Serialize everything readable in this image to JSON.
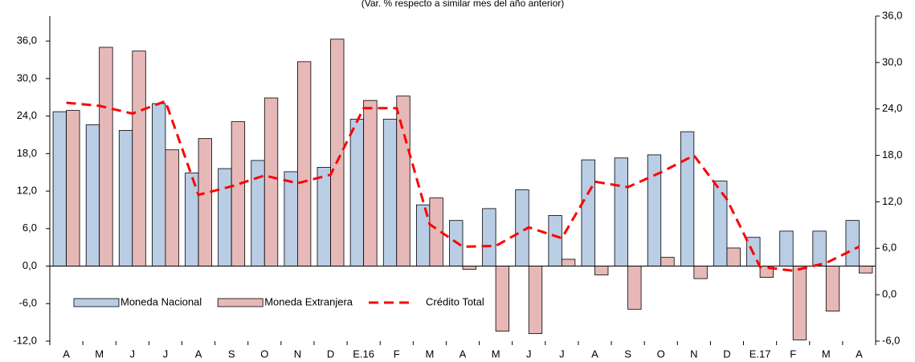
{
  "chart_data": {
    "type": "bar",
    "title": "(Var. % respecto a similar mes del año anterior)",
    "categories": [
      "A",
      "M",
      "J",
      "J",
      "A",
      "S",
      "O",
      "N",
      "D",
      "E.16",
      "F",
      "M",
      "A",
      "M",
      "J",
      "J",
      "A",
      "S",
      "O",
      "N",
      "D",
      "E.17",
      "F",
      "M",
      "A"
    ],
    "series": [
      {
        "name": "Moneda Nacional",
        "type": "bar",
        "color": "#b9cde5",
        "values": [
          24.7,
          22.6,
          21.7,
          26.0,
          14.9,
          15.6,
          16.9,
          15.1,
          15.8,
          23.5,
          23.5,
          9.8,
          7.3,
          9.2,
          12.2,
          8.1,
          17.0,
          17.3,
          17.8,
          21.5,
          13.6,
          4.6,
          5.6,
          5.6,
          7.3
        ]
      },
      {
        "name": "Moneda Extranjera",
        "type": "bar",
        "color": "#e6b9b8",
        "values": [
          24.9,
          35.0,
          34.4,
          18.6,
          20.4,
          23.1,
          26.9,
          32.7,
          36.3,
          26.5,
          27.2,
          10.9,
          -0.5,
          -10.4,
          -10.8,
          1.1,
          -1.4,
          -6.9,
          1.4,
          -2.0,
          2.9,
          -1.8,
          -11.8,
          -7.2,
          -1.1
        ]
      },
      {
        "name": "Crédito Total",
        "type": "line",
        "axis": "y2",
        "color": "#ff0000",
        "values": [
          24.8,
          24.4,
          23.4,
          25.0,
          12.9,
          14.0,
          15.4,
          14.4,
          15.5,
          24.1,
          24.1,
          9.1,
          6.2,
          6.3,
          8.7,
          7.3,
          14.6,
          13.9,
          15.8,
          18.0,
          12.3,
          3.6,
          3.1,
          4.1,
          6.2
        ]
      }
    ],
    "ylim": [
      -12,
      40
    ],
    "yticks": [
      {
        "value": -12,
        "label": "-12,0"
      },
      {
        "value": -6,
        "label": "-6,0"
      },
      {
        "value": 0,
        "label": "0,0"
      },
      {
        "value": 6,
        "label": "6,0"
      },
      {
        "value": 12,
        "label": "12,0"
      },
      {
        "value": 18,
        "label": "18,0"
      },
      {
        "value": 24,
        "label": "24,0"
      },
      {
        "value": 30,
        "label": "30,0"
      },
      {
        "value": 36,
        "label": "36,0"
      }
    ],
    "y2lim": [
      -6,
      36
    ],
    "y2ticks": [
      {
        "value": -6,
        "label": "-6,0"
      },
      {
        "value": 0,
        "label": "0,0"
      },
      {
        "value": 6,
        "label": "6,0"
      },
      {
        "value": 12,
        "label": "12,0"
      },
      {
        "value": 18,
        "label": "18,0"
      },
      {
        "value": 24,
        "label": "24,0"
      },
      {
        "value": 30,
        "label": "30,0"
      },
      {
        "value": 36,
        "label": "36,0"
      }
    ],
    "legend": "lower left"
  }
}
